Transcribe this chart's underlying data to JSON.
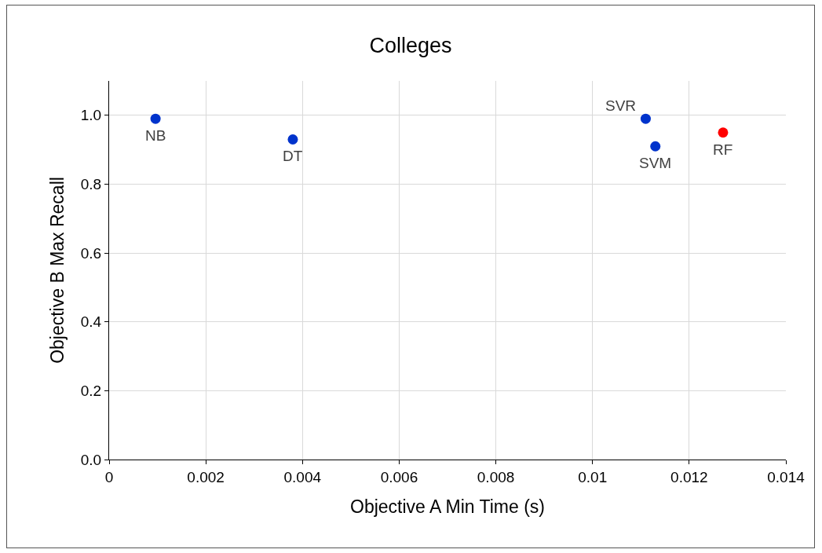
{
  "chart_data": {
    "type": "scatter",
    "title": "Colleges",
    "xlabel": "Objective A Min Time (s)",
    "ylabel": "Objective B Max Recall",
    "x": [
      0.00096,
      0.0038,
      0.0111,
      0.0113,
      0.0127
    ],
    "values": [
      0.99,
      0.93,
      0.99,
      0.91,
      0.95
    ],
    "colors": [
      "#0033cc",
      "#0033cc",
      "#0033cc",
      "#0033cc",
      "#ff0000"
    ],
    "annotations": [
      {
        "text": "NB",
        "x": 0.00096,
        "y": 0.99
      },
      {
        "text": "DT",
        "x": 0.0038,
        "y": 0.93
      },
      {
        "text": "SVR",
        "x": 0.0111,
        "y": 0.99
      },
      {
        "text": "SVM",
        "x": 0.0113,
        "y": 0.91
      },
      {
        "text": "RF",
        "x": 0.0127,
        "y": 0.95
      }
    ],
    "xlim": [
      0,
      0.014
    ],
    "xticks": [
      0,
      0.002,
      0.004,
      0.006,
      0.008,
      0.01,
      0.012,
      0.014
    ],
    "ylim": [
      0,
      1.1
    ],
    "yticks": [
      {
        "value": 0,
        "label": "0.0"
      },
      {
        "value": 0.2,
        "label": "0.2"
      },
      {
        "value": 0.4,
        "label": "0.4"
      },
      {
        "value": 0.6,
        "label": "0.6"
      },
      {
        "value": 0.8,
        "label": "0.8"
      },
      {
        "value": 1,
        "label": "1.0"
      }
    ],
    "grid": true,
    "marker": "circle"
  }
}
